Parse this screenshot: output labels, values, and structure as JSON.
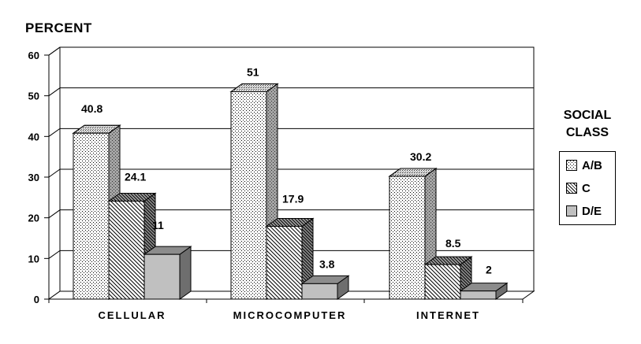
{
  "y_axis_title": "PERCENT",
  "legend": {
    "title_line1": "SOCIAL",
    "title_line2": "CLASS",
    "items": [
      "A/B",
      "C",
      "D/E"
    ]
  },
  "chart_data": {
    "type": "bar",
    "categories": [
      "CELLULAR",
      "MICROCOMPUTER",
      "INTERNET"
    ],
    "series": [
      {
        "name": "A/B",
        "values": [
          40.8,
          51,
          30.2
        ],
        "labels": [
          "40.8",
          "51",
          "30.2"
        ]
      },
      {
        "name": "C",
        "values": [
          24.1,
          17.9,
          8.5
        ],
        "labels": [
          "24.1",
          "17.9",
          "8.5"
        ]
      },
      {
        "name": "D/E",
        "values": [
          11,
          3.8,
          2
        ],
        "labels": [
          "11",
          "3.8",
          "2"
        ]
      }
    ],
    "ylabel": "PERCENT",
    "ylim": [
      0,
      60
    ],
    "yticks": [
      0,
      10,
      20,
      30,
      40,
      50,
      60
    ],
    "grid": true,
    "style": "3d",
    "legend_position": "right"
  }
}
